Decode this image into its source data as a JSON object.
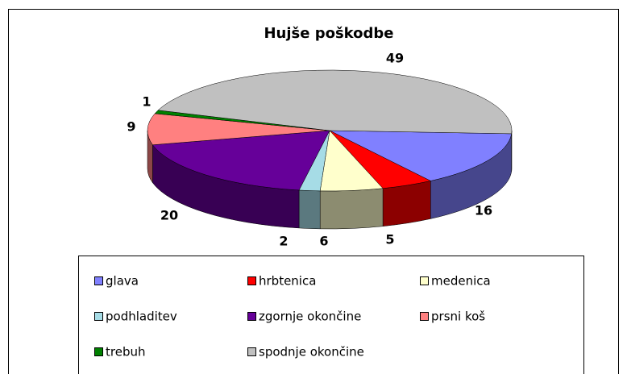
{
  "chart_data": {
    "type": "pie3d",
    "title": "Hujše poškodbe",
    "categories": [
      "glava",
      "hrbtenica",
      "medenica",
      "podhladitev",
      "zgornje okončine",
      "prsni koš",
      "trebuh",
      "spodnje okončine"
    ],
    "values": [
      16,
      5,
      6,
      2,
      20,
      9,
      1,
      49
    ],
    "colors": [
      "#8080ff",
      "#ff0000",
      "#ffffcc",
      "#a6dce6",
      "#660099",
      "#ff8080",
      "#008000",
      "#c0c0c0"
    ],
    "legend": "bottom"
  }
}
